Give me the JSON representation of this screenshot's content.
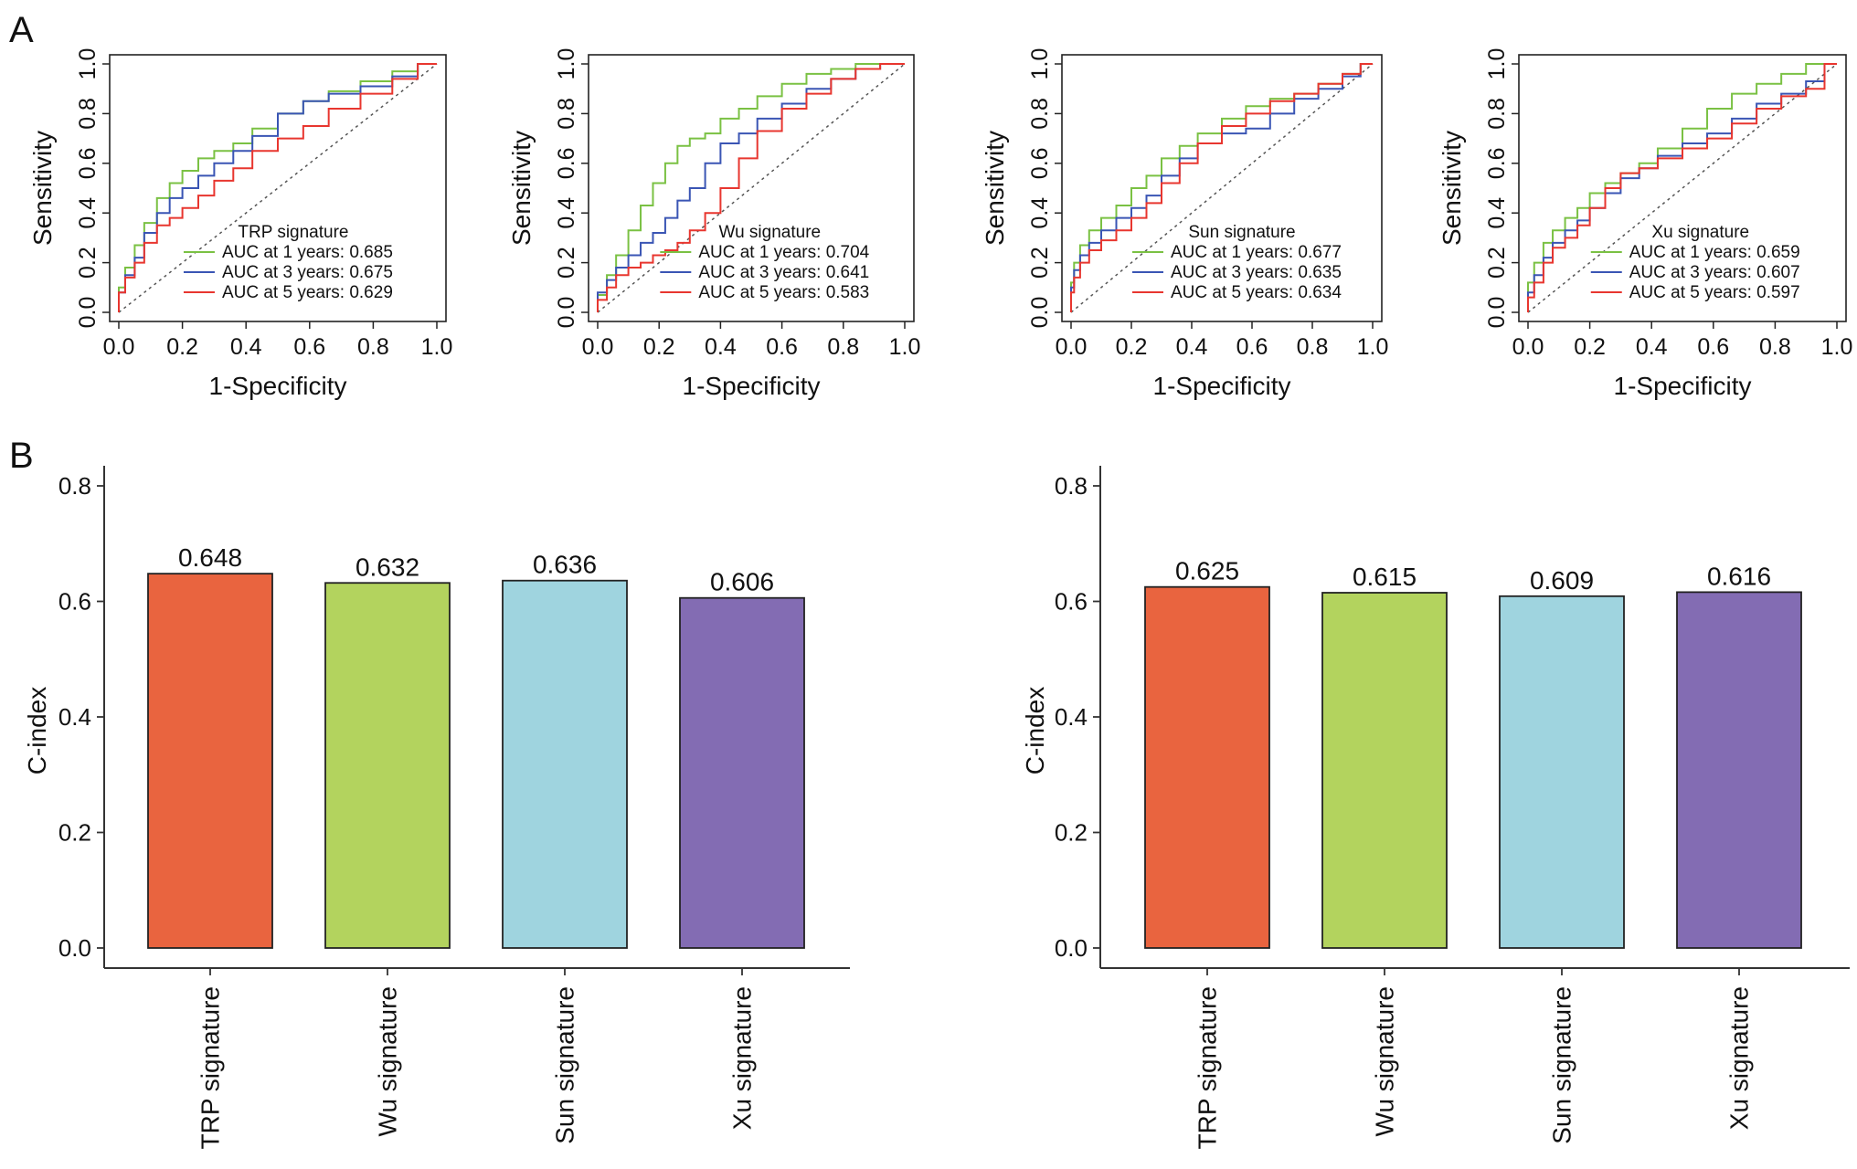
{
  "panels": {
    "a_label": "A",
    "b_label": "B"
  },
  "colors": {
    "year1": "#7ac143",
    "year3": "#3a55b4",
    "year5": "#e8362f",
    "diagonal": "#555555",
    "bar_fills": [
      "#e9643f",
      "#b3d35e",
      "#9fd4df",
      "#836cb3"
    ]
  },
  "chart_data": [
    {
      "type": "line",
      "title": "",
      "xlabel": "1-Specificity",
      "ylabel": "Sensitivity",
      "xlim": [
        0,
        1
      ],
      "ylim": [
        0,
        1
      ],
      "ticks": [
        "0.0",
        "0.2",
        "0.4",
        "0.6",
        "0.8",
        "1.0"
      ],
      "legend_title": "TRP signature",
      "legend_placement": "bottom-right",
      "series": [
        {
          "name": "AUC at 1 years: 0.685",
          "color_key": "year1",
          "x": [
            0,
            0.02,
            0.05,
            0.08,
            0.12,
            0.16,
            0.2,
            0.25,
            0.3,
            0.36,
            0.42,
            0.5,
            0.58,
            0.66,
            0.76,
            0.86,
            0.94,
            1
          ],
          "y": [
            0,
            0.1,
            0.18,
            0.27,
            0.36,
            0.46,
            0.52,
            0.57,
            0.62,
            0.65,
            0.68,
            0.74,
            0.8,
            0.85,
            0.89,
            0.93,
            0.97,
            1
          ]
        },
        {
          "name": "AUC at 3 years: 0.675",
          "color_key": "year3",
          "x": [
            0,
            0.02,
            0.05,
            0.08,
            0.12,
            0.16,
            0.2,
            0.25,
            0.3,
            0.36,
            0.42,
            0.5,
            0.58,
            0.66,
            0.76,
            0.86,
            0.94,
            1
          ],
          "y": [
            0,
            0.08,
            0.15,
            0.22,
            0.32,
            0.4,
            0.46,
            0.5,
            0.55,
            0.6,
            0.65,
            0.71,
            0.8,
            0.85,
            0.88,
            0.91,
            0.95,
            1
          ]
        },
        {
          "name": "AUC at 5 years: 0.629",
          "color_key": "year5",
          "x": [
            0,
            0.02,
            0.05,
            0.08,
            0.12,
            0.16,
            0.2,
            0.25,
            0.3,
            0.36,
            0.42,
            0.5,
            0.58,
            0.66,
            0.76,
            0.86,
            0.94,
            1
          ],
          "y": [
            0,
            0.08,
            0.14,
            0.2,
            0.28,
            0.35,
            0.38,
            0.42,
            0.47,
            0.53,
            0.58,
            0.65,
            0.7,
            0.75,
            0.82,
            0.88,
            0.94,
            1
          ]
        }
      ]
    },
    {
      "type": "line",
      "title": "",
      "xlabel": "1-Specificity",
      "ylabel": "Sensitivity",
      "xlim": [
        0,
        1
      ],
      "ylim": [
        0,
        1
      ],
      "ticks": [
        "0.0",
        "0.2",
        "0.4",
        "0.6",
        "0.8",
        "1.0"
      ],
      "legend_title": "Wu signature",
      "legend_placement": "bottom-right",
      "series": [
        {
          "name": "AUC at 1 years: 0.704",
          "color_key": "year1",
          "x": [
            0,
            0.03,
            0.06,
            0.1,
            0.14,
            0.18,
            0.22,
            0.26,
            0.3,
            0.35,
            0.4,
            0.46,
            0.52,
            0.6,
            0.68,
            0.76,
            0.84,
            0.92,
            1
          ],
          "y": [
            0,
            0.07,
            0.15,
            0.23,
            0.33,
            0.43,
            0.52,
            0.6,
            0.67,
            0.7,
            0.72,
            0.78,
            0.82,
            0.87,
            0.92,
            0.96,
            0.98,
            1,
            1
          ]
        },
        {
          "name": "AUC at 3 years: 0.641",
          "color_key": "year3",
          "x": [
            0,
            0.03,
            0.06,
            0.1,
            0.14,
            0.18,
            0.22,
            0.26,
            0.3,
            0.35,
            0.4,
            0.46,
            0.52,
            0.6,
            0.68,
            0.76,
            0.84,
            0.92,
            1
          ],
          "y": [
            0,
            0.08,
            0.13,
            0.18,
            0.23,
            0.28,
            0.32,
            0.38,
            0.45,
            0.5,
            0.6,
            0.68,
            0.72,
            0.78,
            0.84,
            0.9,
            0.94,
            0.98,
            1
          ]
        },
        {
          "name": "AUC at 5 years: 0.583",
          "color_key": "year5",
          "x": [
            0,
            0.03,
            0.06,
            0.1,
            0.14,
            0.18,
            0.22,
            0.26,
            0.3,
            0.35,
            0.4,
            0.46,
            0.52,
            0.6,
            0.68,
            0.76,
            0.84,
            0.92,
            1
          ],
          "y": [
            0,
            0.05,
            0.1,
            0.15,
            0.18,
            0.2,
            0.23,
            0.25,
            0.28,
            0.33,
            0.4,
            0.5,
            0.62,
            0.73,
            0.82,
            0.88,
            0.94,
            0.98,
            1
          ]
        }
      ]
    },
    {
      "type": "line",
      "title": "",
      "xlabel": "1-Specificity",
      "ylabel": "Sensitivity",
      "xlim": [
        0,
        1
      ],
      "ylim": [
        0,
        1
      ],
      "ticks": [
        "0.0",
        "0.2",
        "0.4",
        "0.6",
        "0.8",
        "1.0"
      ],
      "legend_title": "Sun signature",
      "legend_placement": "bottom-right",
      "series": [
        {
          "name": "AUC at 1 years: 0.677",
          "color_key": "year1",
          "x": [
            0,
            0.01,
            0.03,
            0.06,
            0.1,
            0.15,
            0.2,
            0.25,
            0.3,
            0.36,
            0.42,
            0.5,
            0.58,
            0.66,
            0.74,
            0.82,
            0.9,
            0.96,
            1
          ],
          "y": [
            0,
            0.12,
            0.2,
            0.27,
            0.33,
            0.38,
            0.43,
            0.5,
            0.55,
            0.62,
            0.67,
            0.72,
            0.78,
            0.83,
            0.86,
            0.88,
            0.92,
            0.96,
            1
          ]
        },
        {
          "name": "AUC at 3 years: 0.635",
          "color_key": "year3",
          "x": [
            0,
            0.01,
            0.03,
            0.06,
            0.1,
            0.15,
            0.2,
            0.25,
            0.3,
            0.36,
            0.42,
            0.5,
            0.58,
            0.66,
            0.74,
            0.82,
            0.9,
            0.96,
            1
          ],
          "y": [
            0,
            0.1,
            0.17,
            0.23,
            0.28,
            0.33,
            0.38,
            0.42,
            0.47,
            0.55,
            0.62,
            0.68,
            0.72,
            0.74,
            0.8,
            0.86,
            0.9,
            0.95,
            1
          ]
        },
        {
          "name": "AUC at 5 years: 0.634",
          "color_key": "year5",
          "x": [
            0,
            0.01,
            0.03,
            0.06,
            0.1,
            0.15,
            0.2,
            0.25,
            0.3,
            0.36,
            0.42,
            0.5,
            0.58,
            0.66,
            0.74,
            0.82,
            0.9,
            0.96,
            1
          ],
          "y": [
            0,
            0.08,
            0.14,
            0.2,
            0.25,
            0.29,
            0.33,
            0.38,
            0.44,
            0.52,
            0.6,
            0.68,
            0.75,
            0.8,
            0.85,
            0.88,
            0.92,
            0.96,
            1
          ]
        }
      ]
    },
    {
      "type": "line",
      "title": "",
      "xlabel": "1-Specificity",
      "ylabel": "Sensitivity",
      "xlim": [
        0,
        1
      ],
      "ylim": [
        0,
        1
      ],
      "ticks": [
        "0.0",
        "0.2",
        "0.4",
        "0.6",
        "0.8",
        "1.0"
      ],
      "legend_title": "Xu signature",
      "legend_placement": "bottom-right",
      "series": [
        {
          "name": "AUC at 1 years: 0.659",
          "color_key": "year1",
          "x": [
            0,
            0.02,
            0.05,
            0.08,
            0.12,
            0.16,
            0.2,
            0.25,
            0.3,
            0.36,
            0.42,
            0.5,
            0.58,
            0.66,
            0.74,
            0.82,
            0.9,
            0.96,
            1
          ],
          "y": [
            0,
            0.12,
            0.2,
            0.28,
            0.33,
            0.38,
            0.42,
            0.48,
            0.52,
            0.56,
            0.6,
            0.66,
            0.74,
            0.82,
            0.88,
            0.92,
            0.96,
            1,
            1
          ]
        },
        {
          "name": "AUC at 3 years: 0.607",
          "color_key": "year3",
          "x": [
            0,
            0.02,
            0.05,
            0.08,
            0.12,
            0.16,
            0.2,
            0.25,
            0.3,
            0.36,
            0.42,
            0.5,
            0.58,
            0.66,
            0.74,
            0.82,
            0.9,
            0.96,
            1
          ],
          "y": [
            0,
            0.08,
            0.15,
            0.22,
            0.28,
            0.33,
            0.37,
            0.42,
            0.48,
            0.54,
            0.58,
            0.63,
            0.68,
            0.72,
            0.78,
            0.84,
            0.88,
            0.93,
            1
          ]
        },
        {
          "name": "AUC at 5 years: 0.597",
          "color_key": "year5",
          "x": [
            0,
            0.02,
            0.05,
            0.08,
            0.12,
            0.16,
            0.2,
            0.25,
            0.3,
            0.36,
            0.42,
            0.5,
            0.58,
            0.66,
            0.74,
            0.82,
            0.9,
            0.96,
            1
          ],
          "y": [
            0,
            0.06,
            0.12,
            0.2,
            0.26,
            0.3,
            0.35,
            0.42,
            0.5,
            0.56,
            0.58,
            0.62,
            0.66,
            0.7,
            0.76,
            0.82,
            0.87,
            0.9,
            1
          ]
        }
      ]
    },
    {
      "type": "bar",
      "title": "",
      "xlabel": "",
      "ylabel": "C-index",
      "ylim": [
        0,
        0.8
      ],
      "yticks": [
        "0.0",
        "0.2",
        "0.4",
        "0.6",
        "0.8"
      ],
      "categories": [
        "TRP signature",
        "Wu signature",
        "Sun signature",
        "Xu signature"
      ],
      "values": [
        0.648,
        0.632,
        0.636,
        0.606
      ],
      "value_labels": [
        "0.648",
        "0.632",
        "0.636",
        "0.606"
      ]
    },
    {
      "type": "bar",
      "title": "",
      "xlabel": "",
      "ylabel": "C-index",
      "ylim": [
        0,
        0.8
      ],
      "yticks": [
        "0.0",
        "0.2",
        "0.4",
        "0.6",
        "0.8"
      ],
      "categories": [
        "TRP signature",
        "Wu signature",
        "Sun signature",
        "Xu signature"
      ],
      "values": [
        0.625,
        0.615,
        0.609,
        0.616
      ],
      "value_labels": [
        "0.625",
        "0.615",
        "0.609",
        "0.616"
      ]
    }
  ]
}
